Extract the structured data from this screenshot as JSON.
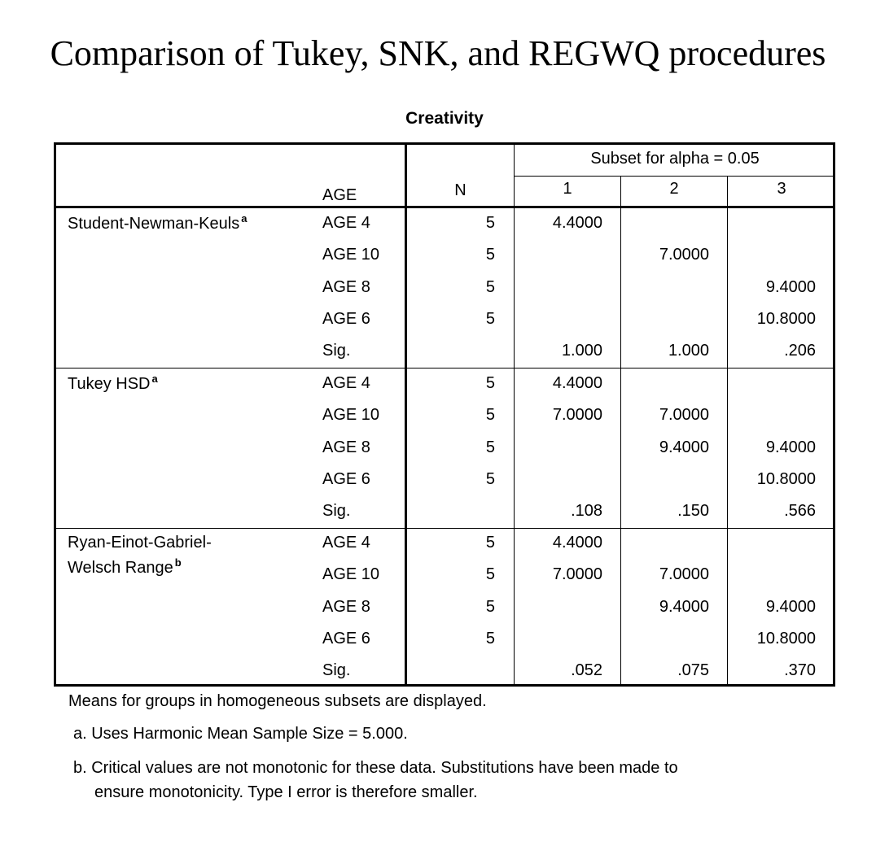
{
  "title": "Comparison of Tukey, SNK, and REGWQ procedures",
  "table": {
    "caption": "Creativity",
    "header": {
      "age": "AGE",
      "n": "N",
      "subset_group": "Subset for alpha = 0.05",
      "subsets": [
        "1",
        "2",
        "3"
      ]
    },
    "groups": [
      {
        "name": "Student-Newman-Keuls",
        "name_line2": "",
        "footnote_mark": "a",
        "rows": [
          {
            "age": "AGE 4",
            "n": "5",
            "s1": "4.4000",
            "s2": "",
            "s3": ""
          },
          {
            "age": "AGE 10",
            "n": "5",
            "s1": "",
            "s2": "7.0000",
            "s3": ""
          },
          {
            "age": "AGE 8",
            "n": "5",
            "s1": "",
            "s2": "",
            "s3": "9.4000"
          },
          {
            "age": "AGE 6",
            "n": "5",
            "s1": "",
            "s2": "",
            "s3": "10.8000"
          },
          {
            "age": "Sig.",
            "n": "",
            "s1": "1.000",
            "s2": "1.000",
            "s3": ".206"
          }
        ]
      },
      {
        "name": "Tukey HSD",
        "name_line2": "",
        "footnote_mark": "a",
        "rows": [
          {
            "age": "AGE 4",
            "n": "5",
            "s1": "4.4000",
            "s2": "",
            "s3": ""
          },
          {
            "age": "AGE 10",
            "n": "5",
            "s1": "7.0000",
            "s2": "7.0000",
            "s3": ""
          },
          {
            "age": "AGE 8",
            "n": "5",
            "s1": "",
            "s2": "9.4000",
            "s3": "9.4000"
          },
          {
            "age": "AGE 6",
            "n": "5",
            "s1": "",
            "s2": "",
            "s3": "10.8000"
          },
          {
            "age": "Sig.",
            "n": "",
            "s1": ".108",
            "s2": ".150",
            "s3": ".566"
          }
        ]
      },
      {
        "name": "Ryan-Einot-Gabriel-",
        "name_line2": "Welsch Range",
        "footnote_mark": "b",
        "rows": [
          {
            "age": "AGE 4",
            "n": "5",
            "s1": "4.4000",
            "s2": "",
            "s3": ""
          },
          {
            "age": "AGE 10",
            "n": "5",
            "s1": "7.0000",
            "s2": "7.0000",
            "s3": ""
          },
          {
            "age": "AGE 8",
            "n": "5",
            "s1": "",
            "s2": "9.4000",
            "s3": "9.4000"
          },
          {
            "age": "AGE 6",
            "n": "5",
            "s1": "",
            "s2": "",
            "s3": "10.8000"
          },
          {
            "age": "Sig.",
            "n": "",
            "s1": ".052",
            "s2": ".075",
            "s3": ".370"
          }
        ]
      }
    ]
  },
  "footnotes": {
    "main": "Means for groups in homogeneous subsets are displayed.",
    "a": "a. Uses Harmonic Mean Sample Size = 5.000.",
    "b_line1": "b. Critical values are not monotonic for these data. Substitutions have been made to",
    "b_line2": "ensure monotonicity. Type I error is therefore smaller."
  }
}
